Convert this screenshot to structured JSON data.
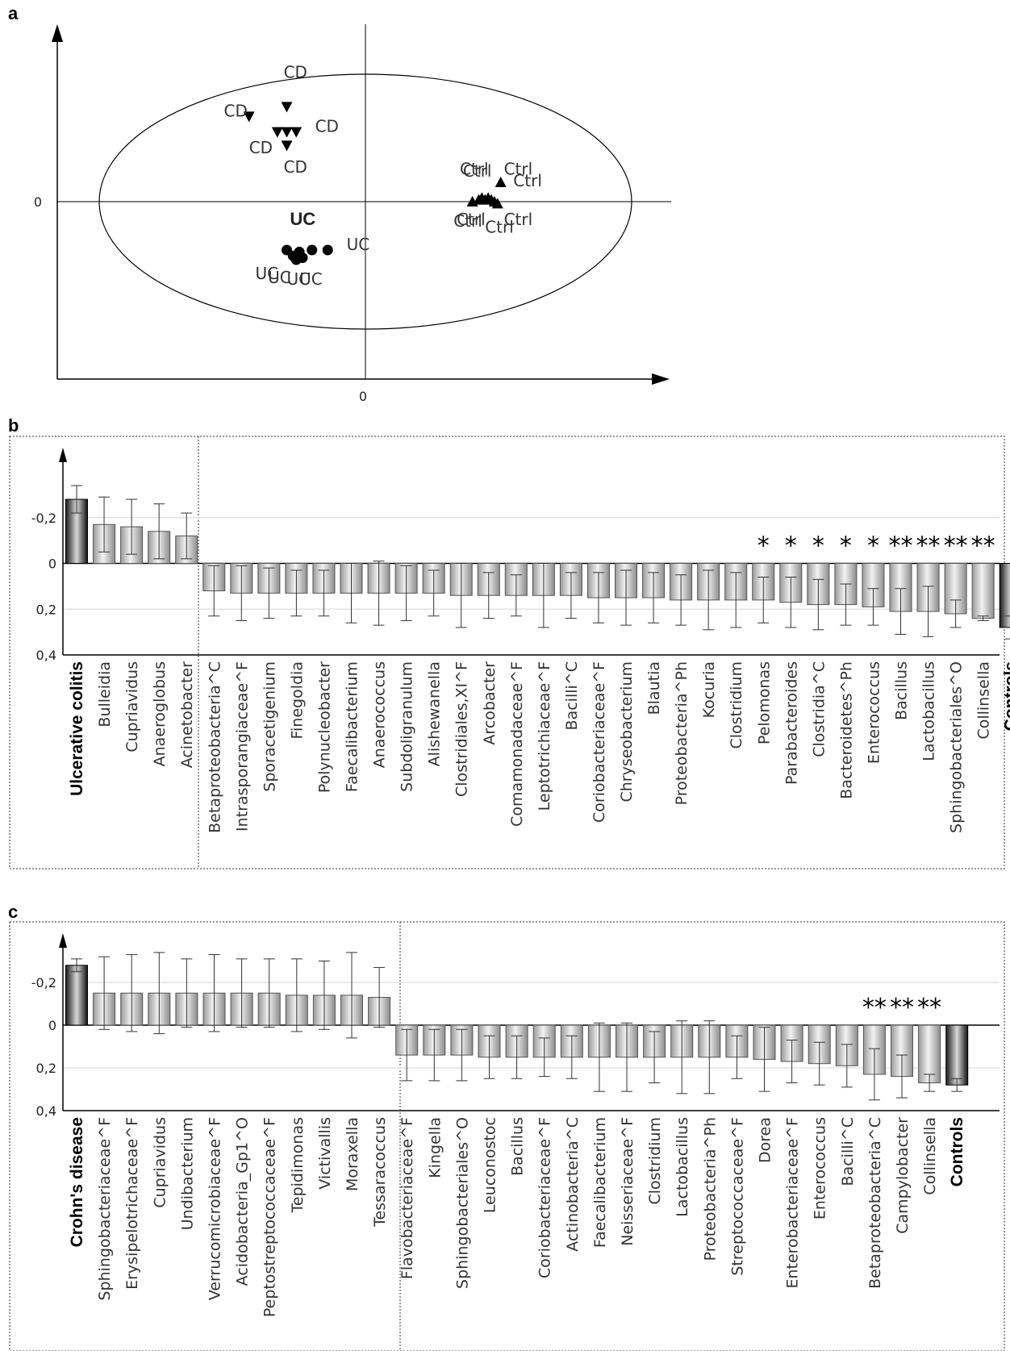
{
  "panels": {
    "a": "a",
    "b": "b",
    "c": "c"
  },
  "chart_data": [
    {
      "id": "a",
      "type": "scatter",
      "title": "",
      "xlabel": "",
      "ylabel": "",
      "x_ticks": [
        "0"
      ],
      "y_ticks": [
        "0"
      ],
      "xlim": [
        -1,
        1
      ],
      "ylim": [
        -1,
        1
      ],
      "grid": false,
      "legend": "none",
      "groups": [
        {
          "name": "CD",
          "marker": "triangle-down",
          "points": [
            [
              -0.37,
              0.44
            ],
            [
              -0.25,
              0.49
            ],
            [
              -0.28,
              0.36
            ],
            [
              -0.25,
              0.36
            ],
            [
              -0.22,
              0.36
            ],
            [
              -0.25,
              0.29
            ]
          ],
          "labels": [
            {
              "text": "CD",
              "x": -0.26,
              "y": 0.64
            },
            {
              "text": "CD",
              "x": -0.45,
              "y": 0.44
            },
            {
              "text": "CD",
              "x": -0.16,
              "y": 0.36
            },
            {
              "text": "CD",
              "x": -0.37,
              "y": 0.25
            },
            {
              "text": "CD",
              "x": -0.26,
              "y": 0.15
            }
          ]
        },
        {
          "name": "UC",
          "marker": "circle",
          "points": [
            [
              -0.25,
              -0.25
            ],
            [
              -0.23,
              -0.28
            ],
            [
              -0.21,
              -0.26
            ],
            [
              -0.2,
              -0.29
            ],
            [
              -0.22,
              -0.3
            ],
            [
              -0.17,
              -0.25
            ],
            [
              -0.12,
              -0.25
            ]
          ],
          "labels": [
            {
              "text": "UC",
              "x": -0.24,
              "y": -0.12,
              "bold": true
            },
            {
              "text": "UC",
              "x": -0.06,
              "y": -0.25
            },
            {
              "text": "UC",
              "x": -0.35,
              "y": -0.4
            },
            {
              "text": "UC",
              "x": -0.31,
              "y": -0.42
            },
            {
              "text": "UC",
              "x": -0.25,
              "y": -0.43
            },
            {
              "text": "UC",
              "x": -0.21,
              "y": -0.43
            }
          ]
        },
        {
          "name": "Ctrl",
          "marker": "triangle-up",
          "points": [
            [
              0.34,
              0.0
            ],
            [
              0.36,
              0.01
            ],
            [
              0.37,
              0.02
            ],
            [
              0.38,
              0.01
            ],
            [
              0.39,
              0.02
            ],
            [
              0.4,
              0.01
            ],
            [
              0.41,
              0.0
            ],
            [
              0.43,
              0.1
            ],
            [
              0.42,
              -0.01
            ]
          ],
          "labels": [
            {
              "text": "Ctrl",
              "x": 0.3,
              "y": 0.14
            },
            {
              "text": "Ctrl",
              "x": 0.31,
              "y": 0.13
            },
            {
              "text": "Ctrl",
              "x": 0.44,
              "y": 0.14
            },
            {
              "text": "Ctrl",
              "x": 0.47,
              "y": 0.08
            },
            {
              "text": "Ctrl",
              "x": 0.28,
              "y": -0.13
            },
            {
              "text": "Ctrl",
              "x": 0.29,
              "y": -0.12
            },
            {
              "text": "Ctrl",
              "x": 0.44,
              "y": -0.12
            },
            {
              "text": "Ctrl",
              "x": 0.38,
              "y": -0.16
            }
          ]
        }
      ]
    },
    {
      "id": "b",
      "type": "bar",
      "title": "",
      "xlabel": "",
      "ylabel": "",
      "ylim": [
        -0.4,
        0.4
      ],
      "y_inverted": true,
      "y_ticks": [
        "-0,2",
        "0",
        "0,2",
        "0,4"
      ],
      "grid": true,
      "legend": "none",
      "left_group_size": 5,
      "categories": [
        "Ulcerative colitis",
        "Bulleidia",
        "Cupriavidus",
        "Anaeroglobus",
        "Acinetobacter",
        "Betaproteobacteria^C",
        "Intrasporangiaceae^F",
        "Sporacetigenium",
        "Finegoldia",
        "Polynucleobacter",
        "Faecalibacterium",
        "Anaerococcus",
        "Subdoligranulum",
        "Alishewanella",
        "Clostridiales,XI^F",
        "Arcobacter",
        "Comamonadaceae^F",
        "Leptotrichiaceae^F",
        "Bacilli^C",
        "Coriobacteriaceae^F",
        "Chryseobacterium",
        "Blautia",
        "Proteobacteria^Ph",
        "Kocuria",
        "Clostridium",
        "Pelomonas",
        "Parabacteroides",
        "Clostridia^C",
        "Bacteroidetes^Ph",
        "Enterococcus",
        "Bacillus",
        "Lactobacillus",
        "Sphingobacteriales^O",
        "Collinsella",
        "Controls"
      ],
      "bold_categories": [
        "Ulcerative colitis",
        "Controls"
      ],
      "values": [
        -0.28,
        -0.17,
        -0.16,
        -0.14,
        -0.12,
        0.12,
        0.13,
        0.13,
        0.13,
        0.13,
        0.13,
        0.13,
        0.13,
        0.13,
        0.14,
        0.14,
        0.14,
        0.14,
        0.14,
        0.15,
        0.15,
        0.15,
        0.16,
        0.16,
        0.16,
        0.16,
        0.17,
        0.18,
        0.18,
        0.19,
        0.21,
        0.21,
        0.22,
        0.24,
        0.28
      ],
      "errors": [
        0.06,
        0.12,
        0.12,
        0.12,
        0.1,
        0.11,
        0.12,
        0.11,
        0.1,
        0.1,
        0.13,
        0.14,
        0.12,
        0.1,
        0.14,
        0.1,
        0.09,
        0.14,
        0.1,
        0.11,
        0.12,
        0.11,
        0.11,
        0.13,
        0.12,
        0.1,
        0.11,
        0.11,
        0.09,
        0.08,
        0.1,
        0.11,
        0.06,
        0.01,
        0.05
      ],
      "significance": [
        "",
        "",
        "",
        "",
        "",
        "",
        "",
        "",
        "",
        "",
        "",
        "",
        "",
        "",
        "",
        "",
        "",
        "",
        "",
        "",
        "",
        "",
        "",
        "",
        "",
        "*",
        "*",
        "*",
        "*",
        "*",
        "**",
        "**",
        "**",
        "**",
        ""
      ]
    },
    {
      "id": "c",
      "type": "bar",
      "title": "",
      "xlabel": "",
      "ylabel": "",
      "ylim": [
        -0.4,
        0.4
      ],
      "y_inverted": true,
      "y_ticks": [
        "-0,2",
        "0",
        "0,2",
        "0,4"
      ],
      "grid": true,
      "legend": "none",
      "left_group_size": 12,
      "categories": [
        "Crohn's disease",
        "Sphingobacteriaceae^F",
        "Erysipelotrichaceae^F",
        "Cupriavidus",
        "Undibacterium",
        "Verrucomicrobiaceae^F",
        "Acidobacteria_Gp1^O",
        "Peptostreptococcaceae^F",
        "Tepidimonas",
        "Victivallis",
        "Moraxella",
        "Tessaracoccus",
        "Flavobacteriaceae^F",
        "Kingella",
        "Sphingobacteriales^O",
        "Leuconostoc",
        "Bacillus",
        "Coriobacteriaceae^F",
        "Actinobacteria^C",
        "Faecalibacterium",
        "Neisseriaceae^F",
        "Clostridium",
        "Lactobacillus",
        "Proteobacteria^Ph",
        "Streptococcaceae^F",
        "Dorea",
        "Enterobacteriaceae^F",
        "Enterococcus",
        "Bacilli^C",
        "Betaproteobacteria^C",
        "Campylobacter",
        "Collinsella",
        "Controls"
      ],
      "bold_categories": [
        "Crohn's disease",
        "Controls"
      ],
      "values": [
        -0.28,
        -0.15,
        -0.15,
        -0.15,
        -0.15,
        -0.15,
        -0.15,
        -0.15,
        -0.14,
        -0.14,
        -0.14,
        -0.13,
        0.14,
        0.14,
        0.14,
        0.15,
        0.15,
        0.15,
        0.15,
        0.15,
        0.15,
        0.15,
        0.15,
        0.15,
        0.15,
        0.16,
        0.17,
        0.18,
        0.19,
        0.23,
        0.24,
        0.27,
        0.28
      ],
      "errors": [
        0.03,
        0.17,
        0.18,
        0.19,
        0.16,
        0.18,
        0.16,
        0.16,
        0.17,
        0.16,
        0.2,
        0.14,
        0.12,
        0.12,
        0.12,
        0.1,
        0.1,
        0.09,
        0.1,
        0.16,
        0.16,
        0.12,
        0.17,
        0.17,
        0.1,
        0.15,
        0.1,
        0.1,
        0.1,
        0.12,
        0.1,
        0.04,
        0.03
      ],
      "significance": [
        "",
        "",
        "",
        "",
        "",
        "",
        "",
        "",
        "",
        "",
        "",
        "",
        "",
        "",
        "",
        "",
        "",
        "",
        "",
        "",
        "",
        "",
        "",
        "",
        "",
        "",
        "",
        "",
        "",
        "**",
        "**",
        "**",
        ""
      ]
    }
  ]
}
